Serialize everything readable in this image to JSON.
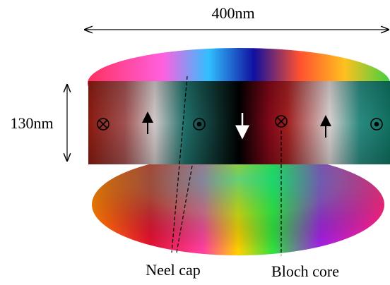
{
  "labels": {
    "width": "400nm",
    "height": "130nm",
    "neel_cap": "Neel cap",
    "bloch_core": "Bloch core"
  }
}
